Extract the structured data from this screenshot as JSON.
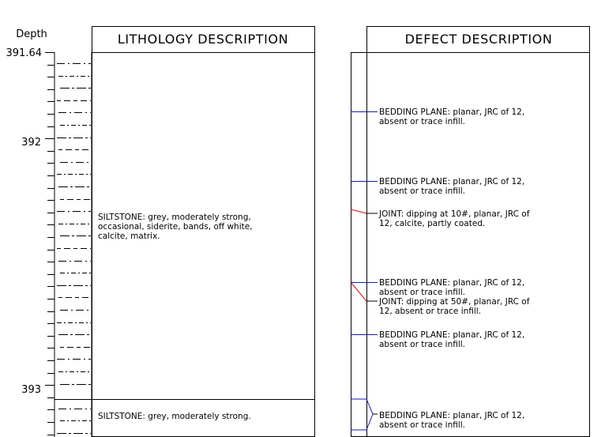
{
  "depth_axis": {
    "label": "Depth",
    "top_value": "391.64",
    "ticks": [
      "392",
      "393"
    ]
  },
  "columns": {
    "lithology_header": "LITHOLOGY DESCRIPTION",
    "defect_header": "DEFECT DESCRIPTION"
  },
  "lithology": [
    {
      "lines": [
        "SILTSTONE: grey, moderately strong,",
        "occasional, siderite, bands, off white,",
        "calcite, matrix."
      ]
    },
    {
      "lines": [
        "SILTSTONE: grey, moderately strong."
      ]
    }
  ],
  "defects": [
    {
      "type": "bedding",
      "lines": [
        "BEDDING PLANE: planar, JRC of 12,",
        "absent or trace infill."
      ]
    },
    {
      "type": "bedding",
      "lines": [
        "BEDDING PLANE: planar, JRC of 12,",
        "absent or trace infill."
      ]
    },
    {
      "type": "joint",
      "lines": [
        "JOINT: dipping at 10#, planar, JRC of",
        "12, calcite, partly coated."
      ]
    },
    {
      "type": "bedding",
      "lines": [
        "BEDDING PLANE: planar, JRC of 12,",
        "absent or trace infill."
      ]
    },
    {
      "type": "joint",
      "lines": [
        "JOINT: dipping at 50#, planar, JRC of",
        "12, absent or trace infill."
      ]
    },
    {
      "type": "bedding",
      "lines": [
        "BEDDING PLANE: planar, JRC of 12,",
        "absent or trace infill."
      ]
    },
    {
      "type": "bedding",
      "lines": [
        "BEDDING PLANE: planar, JRC of 12,",
        "absent or trace infill."
      ]
    }
  ],
  "colors": {
    "bedding_line": "#1a1aa8",
    "joint_line": "#cc1111",
    "ink": "#000000"
  }
}
